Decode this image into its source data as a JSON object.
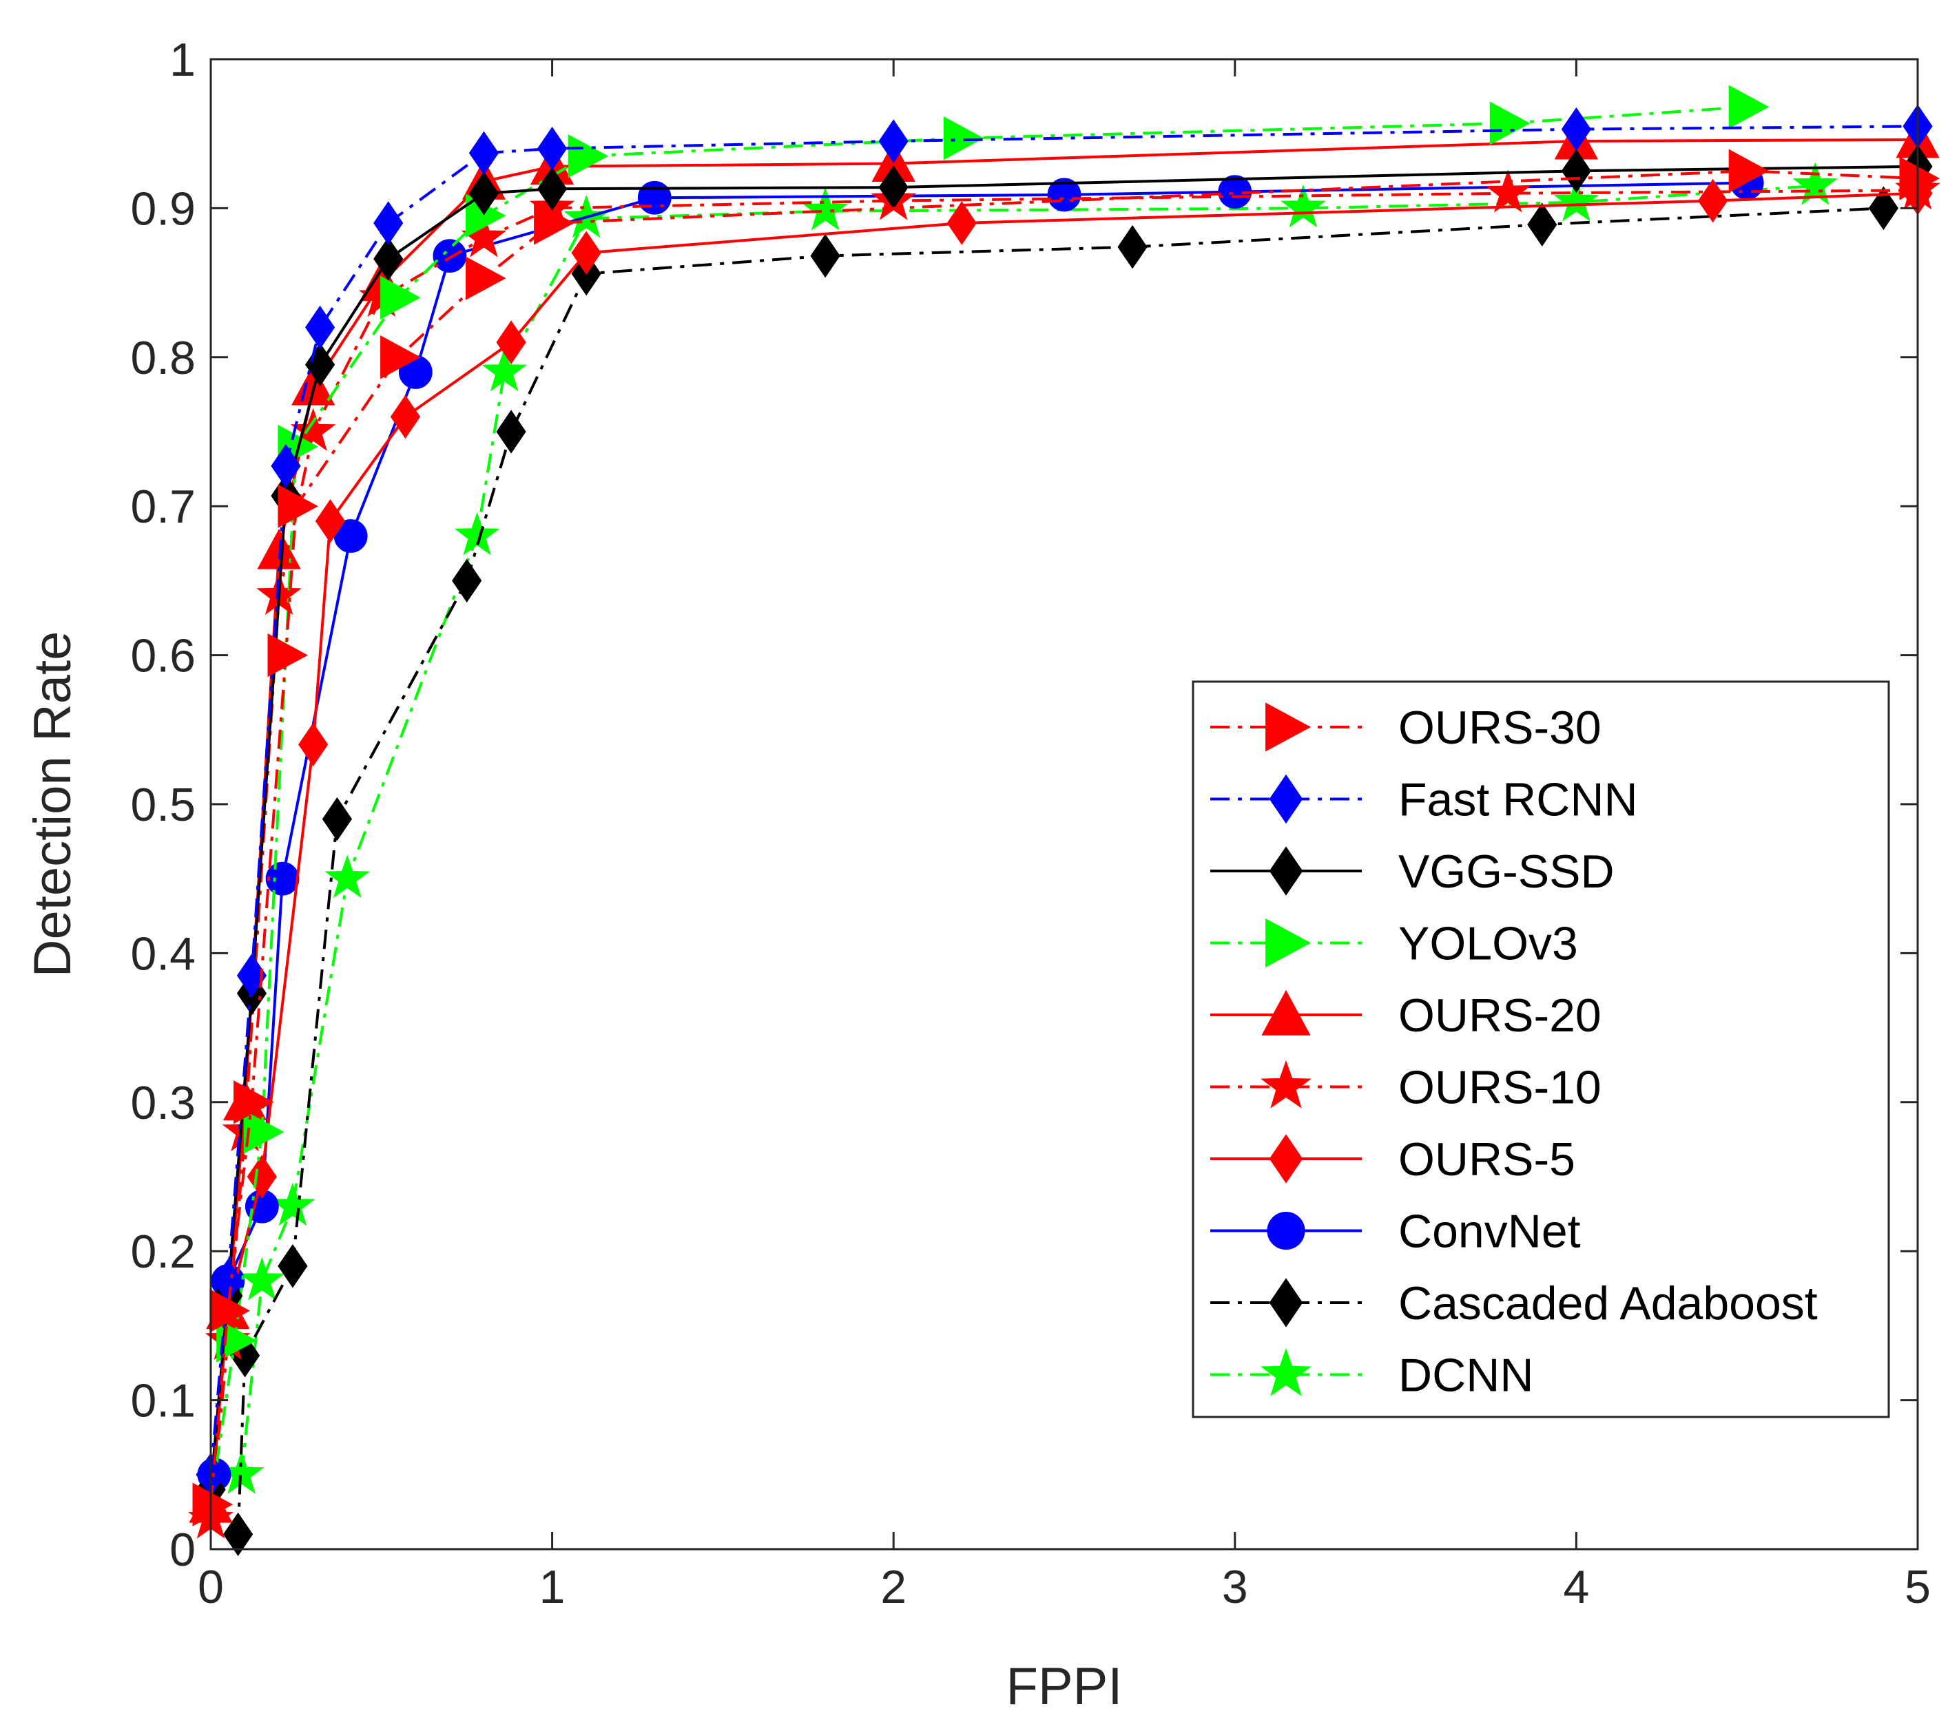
{
  "chart_data": {
    "type": "line",
    "title": "",
    "xlabel": "FPPI",
    "ylabel": "Detection Rate",
    "xlim": [
      0,
      5
    ],
    "ylim": [
      0,
      1
    ],
    "xticks": [
      0,
      1,
      2,
      3,
      4,
      5
    ],
    "xtick_labels": [
      "0",
      "1",
      "2",
      "3",
      "4",
      "5"
    ],
    "yticks": [
      0,
      0.1,
      0.2,
      0.3,
      0.4,
      0.5,
      0.6,
      0.7,
      0.8,
      0.9,
      1
    ],
    "ytick_labels": [
      "0",
      "0.1",
      "0.2",
      "0.3",
      "0.4",
      "0.5",
      "0.6",
      "0.7",
      "0.8",
      "0.9",
      "1"
    ],
    "grid": false,
    "legend_position": "center-right",
    "series": [
      {
        "name": "OURS-30",
        "color": "#FF0000",
        "dash": "dashdot",
        "marker": "triangle-right",
        "x": [
          0,
          0.05,
          0.12,
          0.22,
          0.25,
          0.55,
          0.8,
          1.0,
          4.5,
          5.0
        ],
        "y": [
          0.03,
          0.16,
          0.3,
          0.6,
          0.7,
          0.8,
          0.853,
          0.89,
          0.925,
          0.92
        ]
      },
      {
        "name": "Fast RCNN",
        "color": "#0000FF",
        "dash": "dashdot",
        "marker": "diamond",
        "x": [
          0,
          0.05,
          0.12,
          0.22,
          0.32,
          0.52,
          0.8,
          1.0,
          2.0,
          4.0,
          5.0
        ],
        "y": [
          0.05,
          0.18,
          0.385,
          0.727,
          0.82,
          0.89,
          0.937,
          0.94,
          0.945,
          0.953,
          0.955
        ]
      },
      {
        "name": "VGG-SSD",
        "color": "#000000",
        "dash": "solid",
        "marker": "diamond",
        "x": [
          0,
          0.05,
          0.12,
          0.22,
          0.32,
          0.52,
          0.8,
          1.0,
          2.0,
          4.0,
          5.0
        ],
        "y": [
          0.04,
          0.17,
          0.373,
          0.707,
          0.795,
          0.866,
          0.91,
          0.913,
          0.914,
          0.925,
          0.928
        ]
      },
      {
        "name": "YOLOv3",
        "color": "#00FF00",
        "dash": "dashdot",
        "marker": "triangle-right",
        "x": [
          0,
          0.07,
          0.15,
          0.25,
          0.55,
          0.8,
          1.1,
          2.2,
          3.8,
          4.5
        ],
        "y": [
          0.03,
          0.14,
          0.28,
          0.74,
          0.84,
          0.895,
          0.935,
          0.947,
          0.957,
          0.968
        ]
      },
      {
        "name": "OURS-20",
        "color": "#FF0000",
        "dash": "solid",
        "marker": "triangle-up",
        "x": [
          0,
          0.05,
          0.1,
          0.2,
          0.3,
          0.5,
          0.8,
          1.0,
          2.0,
          4.0,
          5.0
        ],
        "y": [
          0.03,
          0.16,
          0.3,
          0.67,
          0.78,
          0.85,
          0.918,
          0.928,
          0.93,
          0.945,
          0.946
        ]
      },
      {
        "name": "OURS-10",
        "color": "#FF0000",
        "dash": "dashdot",
        "marker": "star",
        "x": [
          0,
          0.05,
          0.1,
          0.2,
          0.3,
          0.5,
          0.8,
          1.0,
          2.0,
          3.8,
          5.0
        ],
        "y": [
          0.02,
          0.14,
          0.28,
          0.64,
          0.75,
          0.84,
          0.88,
          0.9,
          0.905,
          0.91,
          0.912
        ]
      },
      {
        "name": "OURS-5",
        "color": "#FF0000",
        "dash": "solid",
        "marker": "diamond",
        "x": [
          0,
          0.05,
          0.15,
          0.3,
          0.35,
          0.57,
          0.88,
          1.1,
          2.2,
          4.4,
          5.0
        ],
        "y": [
          0.04,
          0.16,
          0.25,
          0.54,
          0.69,
          0.76,
          0.81,
          0.87,
          0.89,
          0.905,
          0.91
        ]
      },
      {
        "name": "ConvNet",
        "color": "#0000FF",
        "dash": "solid",
        "marker": "circle",
        "x": [
          0.01,
          0.05,
          0.15,
          0.21,
          0.41,
          0.6,
          0.7,
          1.3,
          2.5,
          3.0,
          4.5
        ],
        "y": [
          0.05,
          0.18,
          0.23,
          0.45,
          0.68,
          0.79,
          0.868,
          0.907,
          0.909,
          0.911,
          0.917
        ]
      },
      {
        "name": "Cascaded Adaboost",
        "color": "#000000",
        "dash": "dashdot",
        "marker": "diamond",
        "x": [
          0.08,
          0.1,
          0.24,
          0.37,
          0.75,
          0.88,
          1.1,
          1.8,
          2.7,
          3.9,
          4.9
        ],
        "y": [
          0.01,
          0.13,
          0.19,
          0.49,
          0.65,
          0.75,
          0.856,
          0.868,
          0.874,
          0.889,
          0.9
        ]
      },
      {
        "name": "DCNN",
        "color": "#00FF00",
        "dash": "dashdot",
        "marker": "star",
        "x": [
          0.09,
          0.15,
          0.24,
          0.4,
          0.78,
          0.86,
          1.1,
          1.8,
          3.2,
          4.0,
          4.7
        ],
        "y": [
          0.05,
          0.18,
          0.23,
          0.45,
          0.68,
          0.79,
          0.893,
          0.898,
          0.9,
          0.904,
          0.915
        ]
      }
    ]
  }
}
